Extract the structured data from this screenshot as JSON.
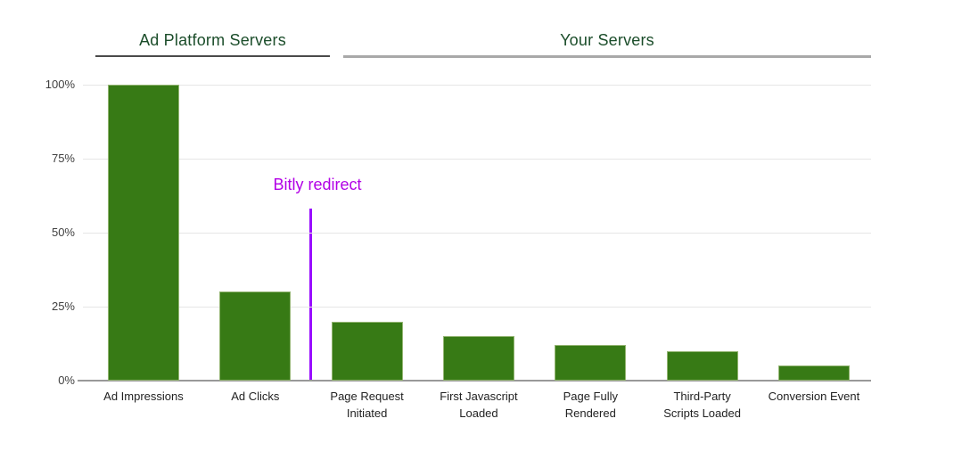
{
  "chart_data": {
    "type": "bar",
    "title": "",
    "xlabel": "",
    "ylabel": "",
    "ylim": [
      0,
      100
    ],
    "grid": true,
    "legend": "none",
    "group_headers": [
      {
        "label": "Ad Platform Servers",
        "covers": [
          "Ad Impressions",
          "Ad Clicks"
        ]
      },
      {
        "label": "Your Servers",
        "covers": [
          "Page Request Initiated",
          "First Javascript Loaded",
          "Page Fully Rendered",
          "Third-Party Scripts Loaded",
          "Conversion Event"
        ]
      }
    ],
    "categories": [
      "Ad Impressions",
      "Ad Clicks",
      "Page Request\nInitiated",
      "First Javascript\nLoaded",
      "Page Fully\nRendered",
      "Third-Party\nScripts Loaded",
      "Conversion Event"
    ],
    "values": [
      100,
      30,
      20,
      15,
      12,
      10,
      5
    ],
    "value_unit": "%",
    "ytick_labels": [
      "100%",
      "75%",
      "50%",
      "25%",
      "0%"
    ],
    "ytick_values": [
      100,
      75,
      50,
      25,
      0
    ],
    "annotation": {
      "label": "Bitly redirect",
      "position": "between Ad Clicks and Page Request Initiated",
      "boundary_after_index": 1
    }
  },
  "colors": {
    "background": "#ffffff",
    "bar_fill": "#377a15",
    "bar_stroke": "#94b573",
    "header_text": "#1b4d2a",
    "header_underline_left": "#4a4a4a",
    "header_underline_right": "#a9a9a9",
    "annotation_text": "#b200e6",
    "annotation_line": "#990dff",
    "gridline": "#e6e6e6",
    "axis_line": "#999999",
    "tick_text": "#404040",
    "category_text": "#222222"
  }
}
